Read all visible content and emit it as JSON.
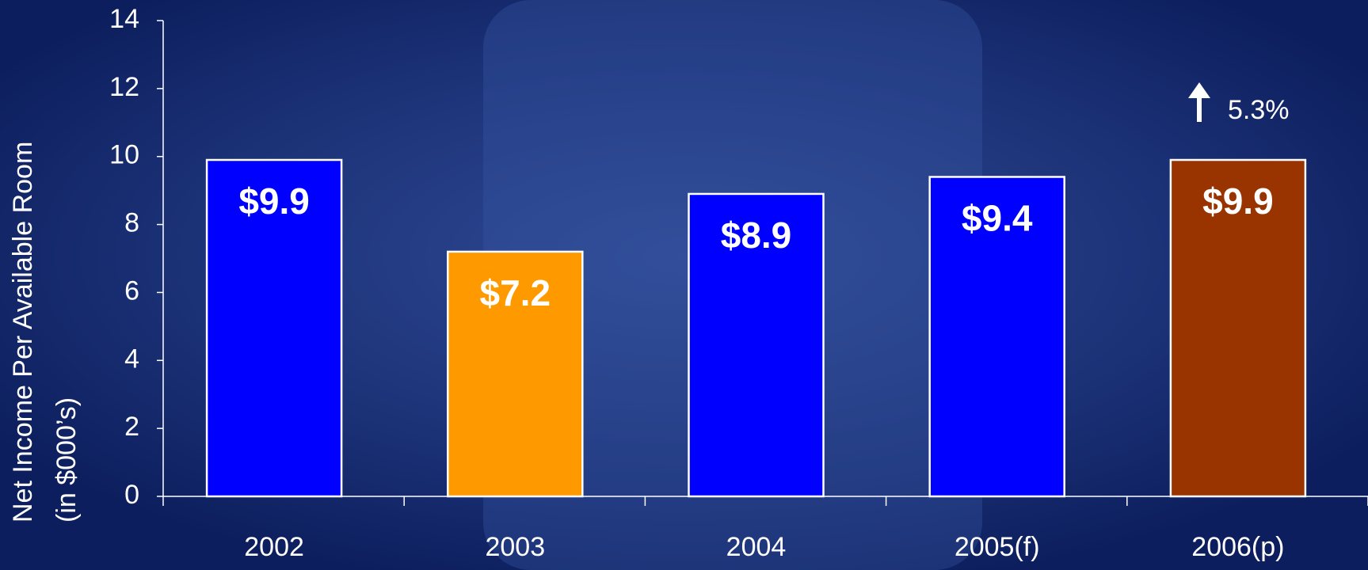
{
  "chart_data": {
    "type": "bar",
    "y_axis_label": [
      "Net Income Per Available Room",
      "(in $000’s)"
    ],
    "categories": [
      "2002",
      "2003",
      "2004",
      "2005(f)",
      "2006(p)"
    ],
    "values": [
      9.9,
      7.2,
      8.9,
      9.4,
      9.9
    ],
    "value_labels": [
      "$9.9",
      "$7.2",
      "$8.9",
      "$9.4",
      "$9.9"
    ],
    "colors": [
      "#0000ff",
      "#ff9900",
      "#0000ff",
      "#0000ff",
      "#993300"
    ],
    "ylim": [
      0,
      14
    ],
    "yticks": [
      0,
      2,
      4,
      6,
      8,
      10,
      12,
      14
    ],
    "annotation": "5.3%"
  }
}
